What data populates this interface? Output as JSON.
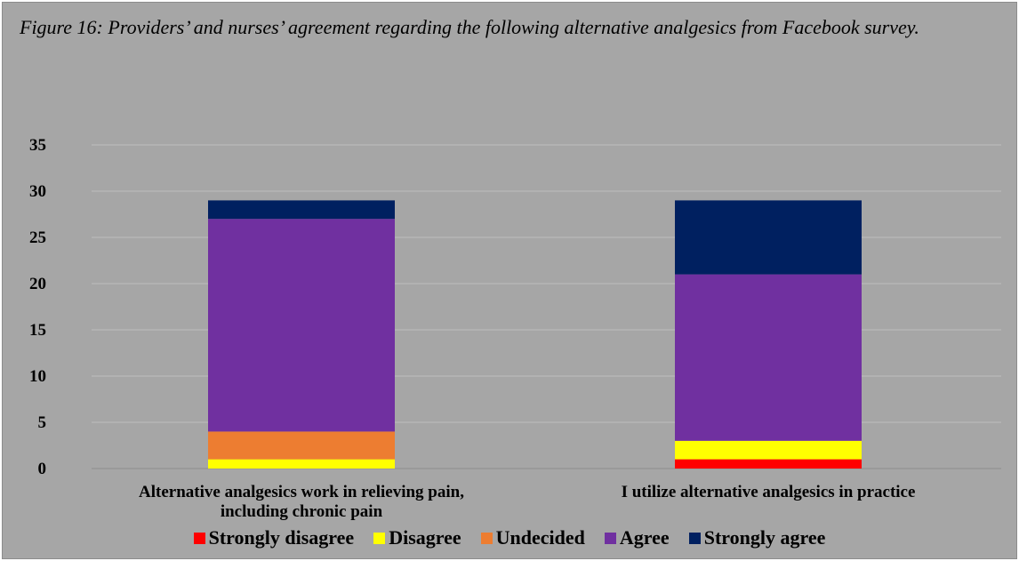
{
  "caption": "Figure 16:  Providers’ and nurses’ agreement regarding the following alternative analgesics from Facebook survey.",
  "chart_data": {
    "type": "bar",
    "stacked": true,
    "categories": [
      [
        "Alternative analgesics work in relieving pain,",
        "including chronic pain"
      ],
      [
        "I utilize alternative analgesics in practice"
      ]
    ],
    "series": [
      {
        "name": "Strongly disagree",
        "color": "#ff0000",
        "values": [
          0,
          1
        ]
      },
      {
        "name": "Disagree",
        "color": "#ffff00",
        "values": [
          1,
          2
        ]
      },
      {
        "name": "Undecided",
        "color": "#ed7d31",
        "values": [
          3,
          0
        ]
      },
      {
        "name": "Agree",
        "color": "#7030a0",
        "values": [
          23,
          18
        ]
      },
      {
        "name": "Strongly agree",
        "color": "#002060",
        "values": [
          2,
          8
        ]
      }
    ],
    "yticks": [
      0,
      5,
      10,
      15,
      20,
      25,
      30,
      35
    ],
    "ylim": [
      0,
      35
    ],
    "grid": true,
    "legend_position": "bottom"
  }
}
